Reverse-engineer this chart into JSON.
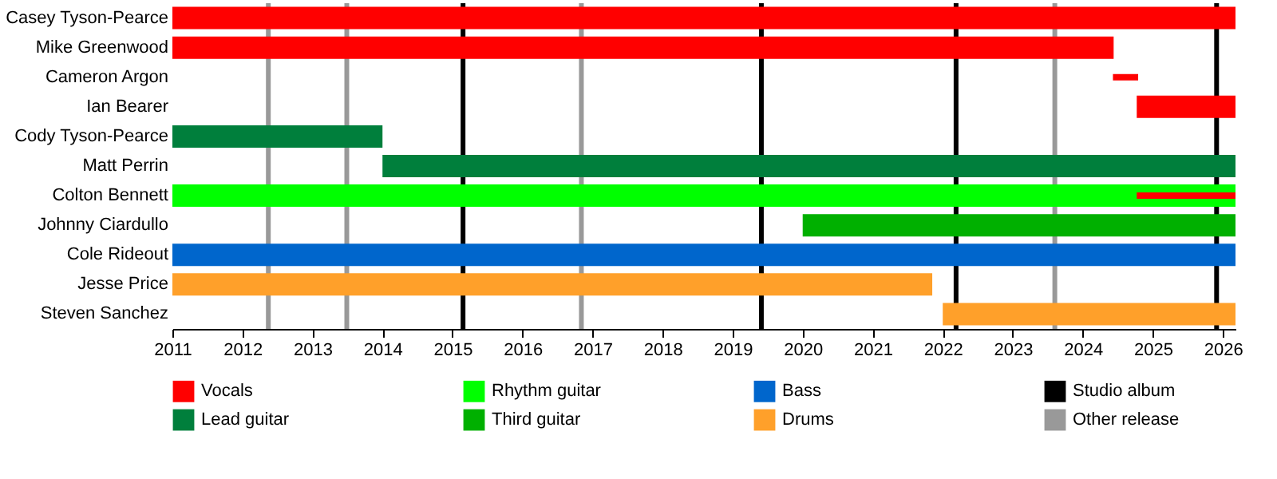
{
  "chart_data": {
    "type": "bar",
    "orientation": "horizontal",
    "categories": [
      "Casey Tyson-Pearce",
      "Mike Greenwood",
      "Cameron Argon",
      "Ian Bearer",
      "Cody Tyson-Pearce",
      "Matt Perrin",
      "Colton Bennett",
      "Johnny Ciardullo",
      "Cole Rideout",
      "Jesse Price",
      "Steven Sanchez"
    ],
    "series": [
      {
        "name": "Vocals",
        "color": "#ff0000",
        "values": [
          15.18,
          13.44,
          null,
          1.41,
          null,
          null,
          null,
          null,
          null,
          null,
          null
        ],
        "base": [
          2011,
          2011,
          null,
          2024.77,
          null,
          null,
          null,
          null,
          null,
          null,
          null
        ]
      },
      {
        "name": "Lead guitar",
        "color": "#007f3c",
        "values": [
          null,
          null,
          null,
          null,
          3.0,
          12.18,
          null,
          null,
          null,
          null,
          null
        ],
        "base": [
          null,
          null,
          null,
          null,
          2011,
          2014,
          null,
          null,
          null,
          null,
          null
        ]
      },
      {
        "name": "Rhythm guitar",
        "color": "#00ff00",
        "values": [
          null,
          null,
          null,
          null,
          null,
          null,
          15.18,
          null,
          null,
          null,
          null
        ],
        "base": [
          null,
          null,
          null,
          null,
          null,
          null,
          2011,
          null,
          null,
          null,
          null
        ]
      },
      {
        "name": "Third guitar",
        "color": "#00b000",
        "values": [
          null,
          null,
          null,
          null,
          null,
          null,
          null,
          6.18,
          null,
          null,
          null
        ],
        "base": [
          null,
          null,
          null,
          null,
          null,
          null,
          null,
          2020,
          null,
          null,
          null
        ]
      },
      {
        "name": "Bass",
        "color": "#0066cc",
        "values": [
          null,
          null,
          null,
          null,
          null,
          null,
          null,
          null,
          15.18,
          null,
          null
        ],
        "base": [
          null,
          null,
          null,
          null,
          null,
          null,
          null,
          null,
          2011,
          null,
          null
        ]
      },
      {
        "name": "Drums",
        "color": "#ffa02a",
        "values": [
          null,
          null,
          null,
          null,
          null,
          null,
          null,
          null,
          null,
          10.85,
          4.18
        ],
        "base": [
          null,
          null,
          null,
          null,
          null,
          null,
          null,
          null,
          null,
          2011,
          2022
        ]
      },
      {
        "color": "#ff0000",
        "values": [
          null,
          null,
          0.36,
          null,
          null,
          null,
          1.41,
          null,
          null,
          null,
          null
        ],
        "base": [
          null,
          null,
          2024.43,
          null,
          null,
          null,
          2024.77,
          null,
          null,
          null,
          null
        ]
      }
    ],
    "xlim": [
      2011,
      2026.18
    ],
    "xticks": [
      2011,
      2012,
      2013,
      2014,
      2015,
      2016,
      2017,
      2018,
      2019,
      2020,
      2021,
      2022,
      2023,
      2024,
      2025,
      2026
    ],
    "ref_lines": [
      {
        "axis": "x",
        "value": 2015.15,
        "label": "Studio album",
        "color": "#000000"
      },
      {
        "axis": "x",
        "value": 2012.37,
        "label": "Other release",
        "color": "#999999"
      },
      {
        "axis": "x",
        "value": 2013.49,
        "color": "#999999"
      },
      {
        "axis": "x",
        "value": 2016.84,
        "color": "#999999"
      },
      {
        "axis": "x",
        "value": 2019.41,
        "color": "#000000"
      },
      {
        "axis": "x",
        "value": 2022.19,
        "color": "#000000"
      },
      {
        "axis": "x",
        "value": 2023.6,
        "color": "#999999"
      },
      {
        "axis": "x",
        "value": 2025.91,
        "color": "#000000"
      }
    ],
    "legend": "bottom"
  }
}
